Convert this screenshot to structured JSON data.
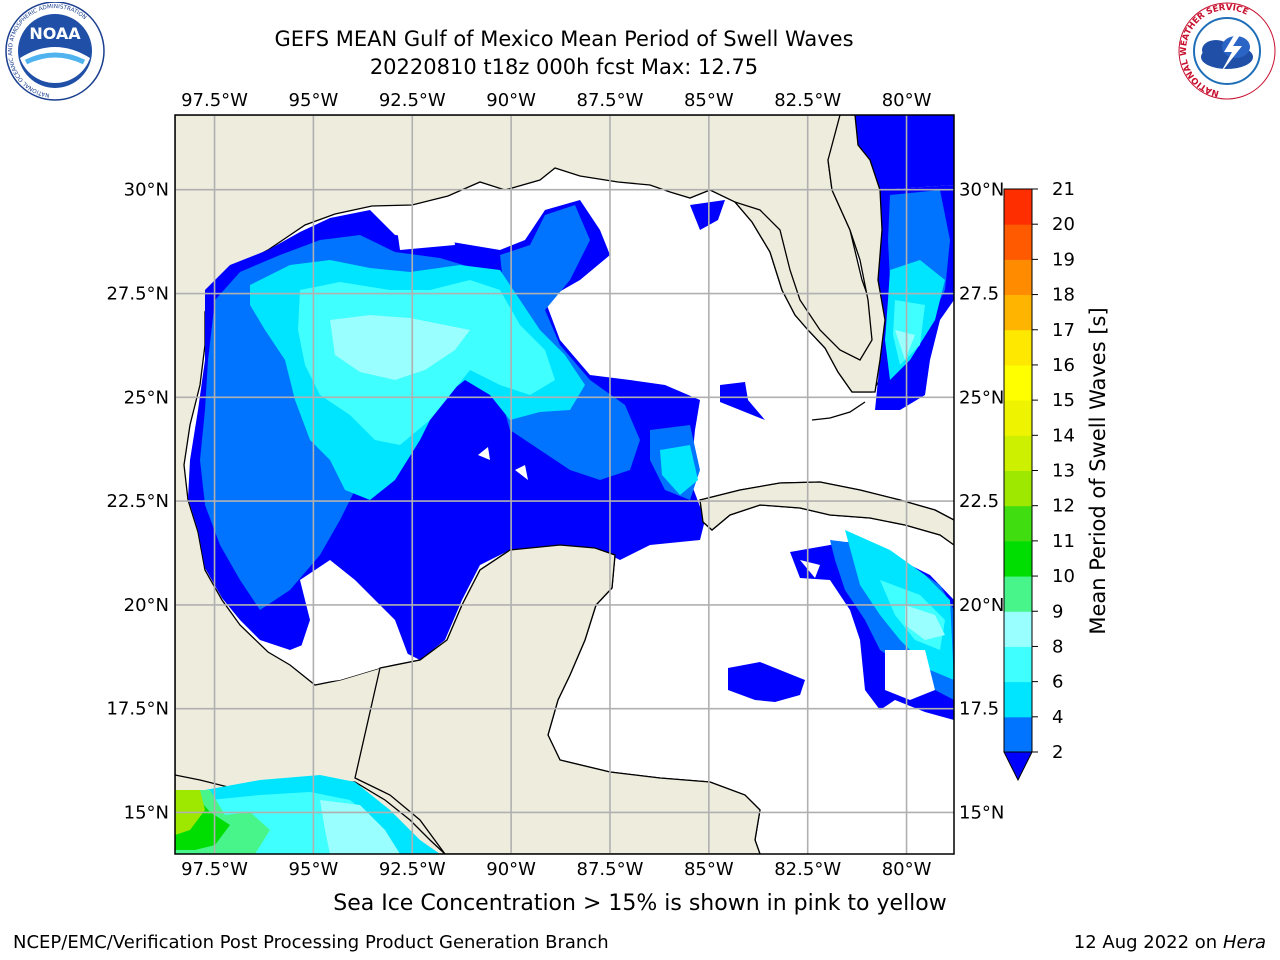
{
  "title_line1": "GEFS MEAN Gulf of Mexico Mean Period of Swell Waves",
  "title_line2": "20220810 t18z 000h fcst   Max: 12.75",
  "note": "Sea Ice Concentration > 15% is shown in pink to yellow",
  "footer_left": "NCEP/EMC/Verification Post Processing Product Generation Branch",
  "footer_date": "12 Aug 2022 on",
  "footer_machine": "Hera",
  "logos": {
    "noaa_text": "NOAA",
    "noaa_ring": "NATIONAL OCEANIC AND ATMOSPHERIC ADMINISTRATION",
    "noaa_ring_bottom": "U.S. DEPARTMENT OF COMMERCE",
    "nws_ring": "NATIONAL WEATHER SERVICE"
  },
  "colors": {
    "land": "#eeecdd",
    "ocean_blank": "#ffffff",
    "grid": "#b0b0b0"
  },
  "chart_data": {
    "type": "heatmap",
    "projection": "lat-lon",
    "lon_range": [
      -98.5,
      -78.8
    ],
    "lat_range": [
      14.0,
      31.8
    ],
    "lon_ticks": [
      "97.5°W",
      "95°W",
      "92.5°W",
      "90°W",
      "87.5°W",
      "85°W",
      "82.5°W",
      "80°W"
    ],
    "lon_tick_values": [
      -97.5,
      -95,
      -92.5,
      -90,
      -87.5,
      -85,
      -82.5,
      -80
    ],
    "lat_ticks_left": [
      "15°N",
      "17.5°N",
      "20°N",
      "22.5°N",
      "25°N",
      "27.5°N",
      "30°N"
    ],
    "lat_ticks_right": [
      "15°N",
      "17.5",
      "20°N",
      "22.5",
      "25°N",
      "27.5",
      "30°N"
    ],
    "lat_tick_values": [
      15,
      17.5,
      20,
      22.5,
      25,
      27.5,
      30
    ],
    "grid": true,
    "colorbar": {
      "label": "Mean Period of Swell Waves [s]",
      "levels": [
        2,
        4,
        6,
        8,
        9,
        10,
        11,
        12,
        13,
        14,
        15,
        16,
        17,
        18,
        19,
        20,
        21
      ],
      "level_labels": [
        "2",
        "4",
        "6",
        "8",
        "9",
        "10",
        "11",
        "12",
        "13",
        "14",
        "15",
        "16",
        "17",
        "18",
        "19",
        "20",
        "21"
      ],
      "colors": [
        "#0073ff",
        "#00e5ff",
        "#40ffff",
        "#99ffff",
        "#48f58a",
        "#00dd00",
        "#40dd10",
        "#9ee800",
        "#cdef00",
        "#eef400",
        "#ffff00",
        "#ffe800",
        "#ffb400",
        "#ff8c00",
        "#ff5a00",
        "#ff2e00"
      ],
      "under_color": "#0000ff",
      "extend": "min"
    },
    "max": 12.75
  }
}
